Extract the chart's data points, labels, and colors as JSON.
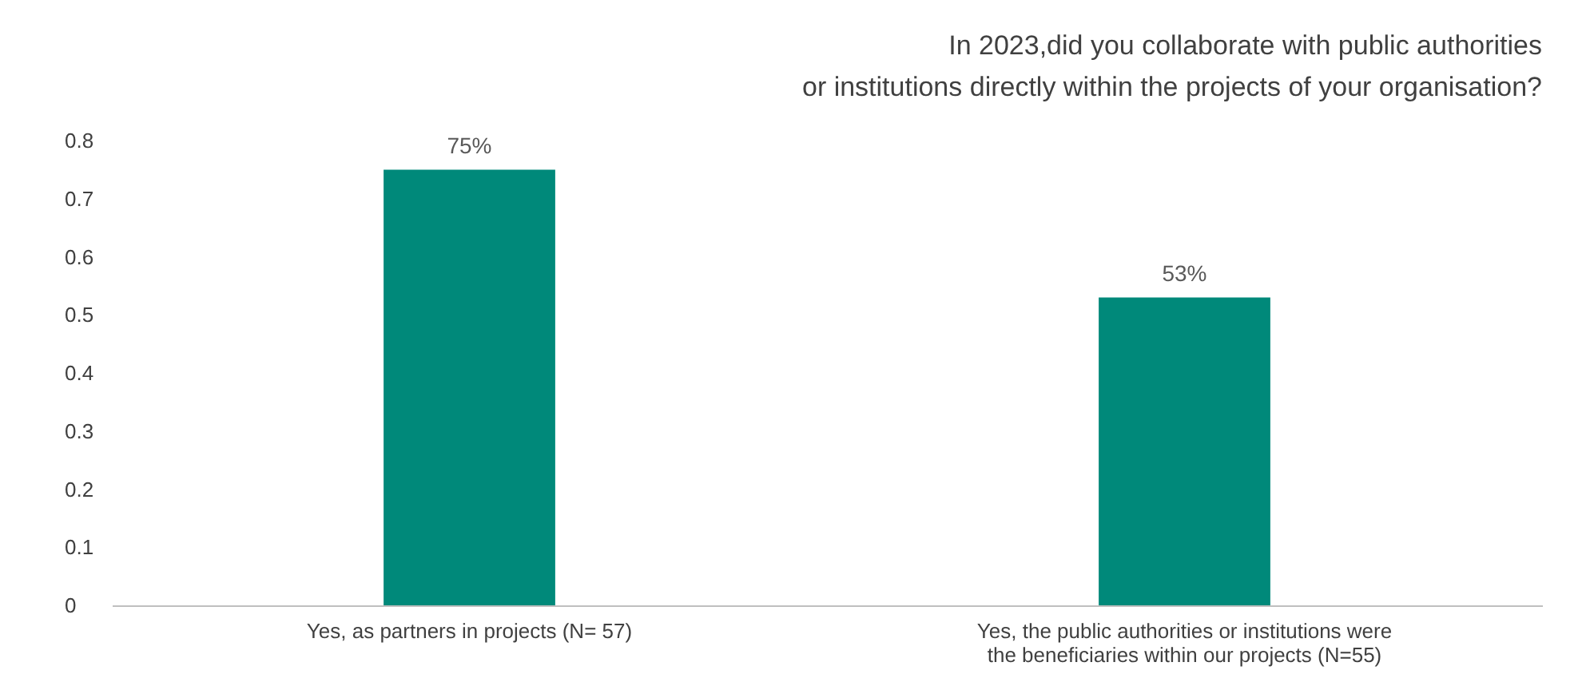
{
  "chart_data": {
    "type": "bar",
    "title": "In 2023,did you collaborate with public authorities\nor institutions directly within the projects of your organisation?",
    "categories": [
      "Yes, as partners in projects (N= 57)",
      "Yes, the public authorities or institutions were\nthe beneficiaries within our projects (N=55)"
    ],
    "values": [
      0.75,
      0.53
    ],
    "value_labels": [
      "75%",
      "53%"
    ],
    "color": "#00897a",
    "ylim": [
      0,
      0.8
    ],
    "yticks": [
      0,
      0.1,
      0.2,
      0.3,
      0.4,
      0.5,
      0.6,
      0.7,
      0.8
    ],
    "grid": false
  }
}
